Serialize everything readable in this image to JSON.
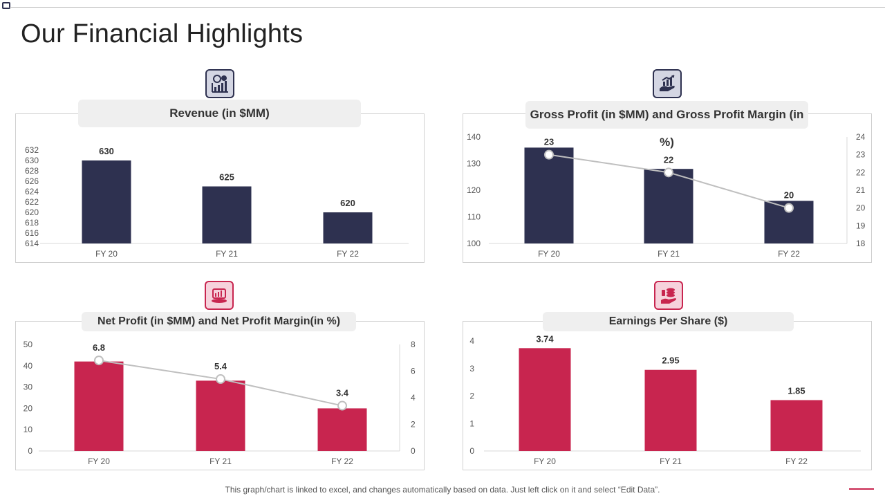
{
  "page": {
    "title": "Our Financial Highlights",
    "footer": "This graph/chart is linked to excel,  and changes automatically based on data. Just left click on it and select “Edit Data”."
  },
  "panels": [
    {
      "title": "Revenue (in $MM)",
      "icon": "revenue-growth-icon"
    },
    {
      "title": "Gross  Profit  (in $MM) and Gross  Profit Margin (in %)",
      "icon": "hand-growth-chart-icon"
    },
    {
      "title": "Net Profit  (in $MM) and Net Profit Margin(in %)",
      "icon": "money-chart-icon"
    },
    {
      "title": "Earnings Per Share ($)",
      "icon": "coins-hand-icon"
    }
  ],
  "colors": {
    "navy": "#2e3150",
    "crimson": "#c8254f",
    "line": "#bfbfbf",
    "badge_navy_bg": "#d4d6e3",
    "badge_red_bg": "#f6d2dc"
  },
  "chart_data": [
    {
      "type": "bar",
      "title": "Revenue (in $MM)",
      "categories": [
        "FY 20",
        "FY 21",
        "FY 22"
      ],
      "values": [
        630,
        625,
        620
      ],
      "labels": [
        "630",
        "625",
        "620"
      ],
      "ylim": [
        614,
        632
      ],
      "yticks": [
        614,
        616,
        618,
        620,
        622,
        624,
        626,
        628,
        630,
        632
      ],
      "grid": false,
      "color": "#2e3150"
    },
    {
      "type": "bar",
      "title": "Gross  Profit  (in $MM) and Gross  Profit Margin (in %)",
      "categories": [
        "FY 20",
        "FY 21",
        "FY 22"
      ],
      "values": [
        136,
        128,
        116
      ],
      "ylim": [
        100,
        140
      ],
      "yticks": [
        100,
        110,
        120,
        130,
        140
      ],
      "color": "#2e3150",
      "line_series": {
        "values": [
          23,
          22,
          20
        ],
        "labels": [
          "23",
          "22",
          "20"
        ],
        "ylim": [
          18,
          24
        ],
        "yticks": [
          18,
          19,
          20,
          21,
          22,
          23,
          24
        ]
      },
      "grid": false
    },
    {
      "type": "bar",
      "title": "Net Profit  (in $MM) and Net Profit Margin(in %)",
      "categories": [
        "FY 20",
        "FY 21",
        "FY 22"
      ],
      "values": [
        42,
        33,
        20
      ],
      "ylim": [
        0,
        50
      ],
      "yticks": [
        0,
        10,
        20,
        30,
        40,
        50
      ],
      "color": "#c8254f",
      "line_series": {
        "values": [
          6.8,
          5.4,
          3.4
        ],
        "labels": [
          "6.8",
          "5.4",
          "3.4"
        ],
        "ylim": [
          0,
          8
        ],
        "yticks": [
          0,
          2,
          4,
          6,
          8
        ]
      },
      "grid": false
    },
    {
      "type": "bar",
      "title": "Earnings Per Share ($)",
      "categories": [
        "FY 20",
        "FY 21",
        "FY 22"
      ],
      "values": [
        3.74,
        2.95,
        1.85
      ],
      "labels": [
        "3.74",
        "2.95",
        "1.85"
      ],
      "ylim": [
        0,
        4
      ],
      "yticks": [
        0,
        1,
        2,
        3,
        4
      ],
      "grid": false,
      "color": "#c8254f"
    }
  ]
}
